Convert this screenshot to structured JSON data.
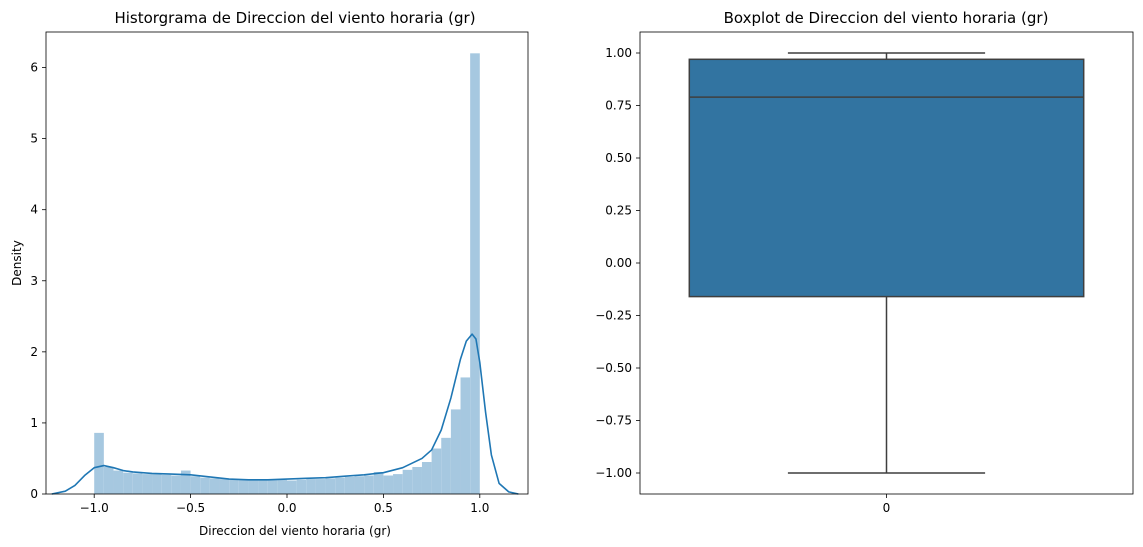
{
  "chart_data": [
    {
      "type": "histogram",
      "title": "Historgrama de Direccion del viento horaria (gr)",
      "xlabel": "Direccion del viento horaria (gr)",
      "ylabel": "Density",
      "xlim": [
        -1.25,
        1.25
      ],
      "ylim": [
        0,
        6.5
      ],
      "x_ticks": [
        -1.0,
        -0.5,
        0.0,
        0.5,
        1.0
      ],
      "x_tick_labels": [
        "−1.0",
        "−0.5",
        "0.0",
        "0.5",
        "1.0"
      ],
      "y_ticks": [
        0,
        1,
        2,
        3,
        4,
        5,
        6
      ],
      "y_tick_labels": [
        "0",
        "1",
        "2",
        "3",
        "4",
        "5",
        "6"
      ],
      "bar_color": "#a6c8e0",
      "kde_color": "#1f77b4",
      "bins": [
        {
          "x0": -1.0,
          "x1": -0.95,
          "density": 0.86
        },
        {
          "x0": -0.95,
          "x1": -0.9,
          "density": 0.38
        },
        {
          "x0": -0.9,
          "x1": -0.85,
          "density": 0.33
        },
        {
          "x0": -0.85,
          "x1": -0.8,
          "density": 0.3
        },
        {
          "x0": -0.8,
          "x1": -0.75,
          "density": 0.29
        },
        {
          "x0": -0.75,
          "x1": -0.7,
          "density": 0.28
        },
        {
          "x0": -0.7,
          "x1": -0.65,
          "density": 0.28
        },
        {
          "x0": -0.65,
          "x1": -0.6,
          "density": 0.27
        },
        {
          "x0": -0.6,
          "x1": -0.55,
          "density": 0.26
        },
        {
          "x0": -0.55,
          "x1": -0.5,
          "density": 0.33
        },
        {
          "x0": -0.5,
          "x1": -0.45,
          "density": 0.25
        },
        {
          "x0": -0.45,
          "x1": -0.4,
          "density": 0.23
        },
        {
          "x0": -0.4,
          "x1": -0.35,
          "density": 0.22
        },
        {
          "x0": -0.35,
          "x1": -0.3,
          "density": 0.21
        },
        {
          "x0": -0.3,
          "x1": -0.25,
          "density": 0.2
        },
        {
          "x0": -0.25,
          "x1": -0.2,
          "density": 0.2
        },
        {
          "x0": -0.2,
          "x1": -0.15,
          "density": 0.19
        },
        {
          "x0": -0.15,
          "x1": -0.1,
          "density": 0.19
        },
        {
          "x0": -0.1,
          "x1": -0.05,
          "density": 0.2
        },
        {
          "x0": -0.05,
          "x1": 0.0,
          "density": 0.2
        },
        {
          "x0": 0.0,
          "x1": 0.05,
          "density": 0.19
        },
        {
          "x0": 0.05,
          "x1": 0.1,
          "density": 0.2
        },
        {
          "x0": 0.1,
          "x1": 0.15,
          "density": 0.21
        },
        {
          "x0": 0.15,
          "x1": 0.2,
          "density": 0.21
        },
        {
          "x0": 0.2,
          "x1": 0.25,
          "density": 0.22
        },
        {
          "x0": 0.25,
          "x1": 0.3,
          "density": 0.23
        },
        {
          "x0": 0.3,
          "x1": 0.35,
          "density": 0.24
        },
        {
          "x0": 0.35,
          "x1": 0.4,
          "density": 0.25
        },
        {
          "x0": 0.4,
          "x1": 0.45,
          "density": 0.26
        },
        {
          "x0": 0.45,
          "x1": 0.5,
          "density": 0.31
        },
        {
          "x0": 0.5,
          "x1": 0.55,
          "density": 0.26
        },
        {
          "x0": 0.55,
          "x1": 0.6,
          "density": 0.28
        },
        {
          "x0": 0.6,
          "x1": 0.65,
          "density": 0.34
        },
        {
          "x0": 0.65,
          "x1": 0.7,
          "density": 0.38
        },
        {
          "x0": 0.7,
          "x1": 0.75,
          "density": 0.45
        },
        {
          "x0": 0.75,
          "x1": 0.8,
          "density": 0.64
        },
        {
          "x0": 0.8,
          "x1": 0.85,
          "density": 0.79
        },
        {
          "x0": 0.85,
          "x1": 0.9,
          "density": 1.19
        },
        {
          "x0": 0.9,
          "x1": 0.95,
          "density": 1.64
        },
        {
          "x0": 0.95,
          "x1": 1.0,
          "density": 6.2
        }
      ],
      "kde": {
        "x": [
          -1.22,
          -1.15,
          -1.1,
          -1.05,
          -1.0,
          -0.95,
          -0.9,
          -0.85,
          -0.8,
          -0.7,
          -0.6,
          -0.5,
          -0.4,
          -0.3,
          -0.2,
          -0.1,
          0.0,
          0.1,
          0.2,
          0.3,
          0.4,
          0.5,
          0.6,
          0.7,
          0.75,
          0.8,
          0.85,
          0.9,
          0.93,
          0.96,
          0.98,
          1.0,
          1.03,
          1.06,
          1.1,
          1.15,
          1.2
        ],
        "y": [
          0.0,
          0.04,
          0.12,
          0.26,
          0.37,
          0.4,
          0.37,
          0.33,
          0.31,
          0.29,
          0.28,
          0.27,
          0.24,
          0.21,
          0.2,
          0.2,
          0.21,
          0.22,
          0.23,
          0.25,
          0.27,
          0.3,
          0.37,
          0.5,
          0.62,
          0.9,
          1.35,
          1.9,
          2.15,
          2.25,
          2.18,
          1.85,
          1.15,
          0.55,
          0.15,
          0.03,
          0.0
        ]
      }
    },
    {
      "type": "boxplot",
      "title": "Boxplot de Direccion del viento horaria (gr)",
      "xlabel": "",
      "ylabel": "",
      "ylim": [
        -1.1,
        1.1
      ],
      "x_tick_labels": [
        "0"
      ],
      "y_ticks": [
        -1.0,
        -0.75,
        -0.5,
        -0.25,
        0.0,
        0.25,
        0.5,
        0.75,
        1.0
      ],
      "y_tick_labels": [
        "−1.00",
        "−0.75",
        "−0.50",
        "−0.25",
        "0.00",
        "0.25",
        "0.50",
        "0.75",
        "1.00"
      ],
      "box_color": "#3274a1",
      "line_color": "#3f3f3f",
      "stats": {
        "min": -1.0,
        "q1": -0.16,
        "median": 0.79,
        "q3": 0.97,
        "max": 1.0
      }
    }
  ]
}
